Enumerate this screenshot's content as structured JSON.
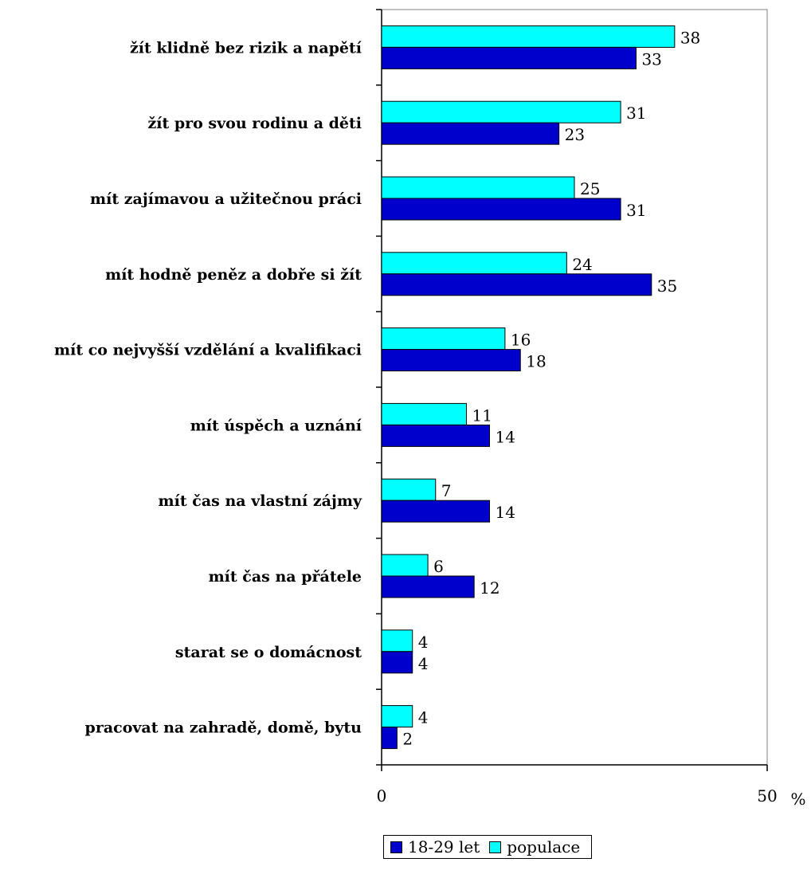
{
  "chart_data": {
    "type": "bar",
    "orientation": "horizontal",
    "categories": [
      "žít klidně bez rizik a napětí",
      "žít pro svou rodinu a děti",
      "mít zajímavou a užitečnou práci",
      "mít hodně peněz a dobře si žít",
      "mít co nejvyšší vzdělání a kvalifikaci",
      "mít úspěch a uznání",
      "mít čas na vlastní zájmy",
      "mít čas na přátele",
      "starat se o domácnost",
      "pracovat na zahradě, domě, bytu"
    ],
    "series": [
      {
        "name": "populace",
        "color": "#00FFFF",
        "values": [
          38,
          31,
          25,
          24,
          16,
          11,
          7,
          6,
          4,
          4
        ]
      },
      {
        "name": "18-29 let",
        "color": "#0000CC",
        "values": [
          33,
          23,
          31,
          35,
          18,
          14,
          14,
          12,
          4,
          2
        ]
      }
    ],
    "xlim": [
      0,
      50
    ],
    "ticks": [
      {
        "value": 0,
        "label": "0"
      },
      {
        "value": 50,
        "label": "50"
      }
    ],
    "unit": "%",
    "title": "",
    "xlabel": "",
    "ylabel": "",
    "grid": false,
    "legend_position": "bottom",
    "legend_order": [
      "18-29 let",
      "populace"
    ]
  }
}
